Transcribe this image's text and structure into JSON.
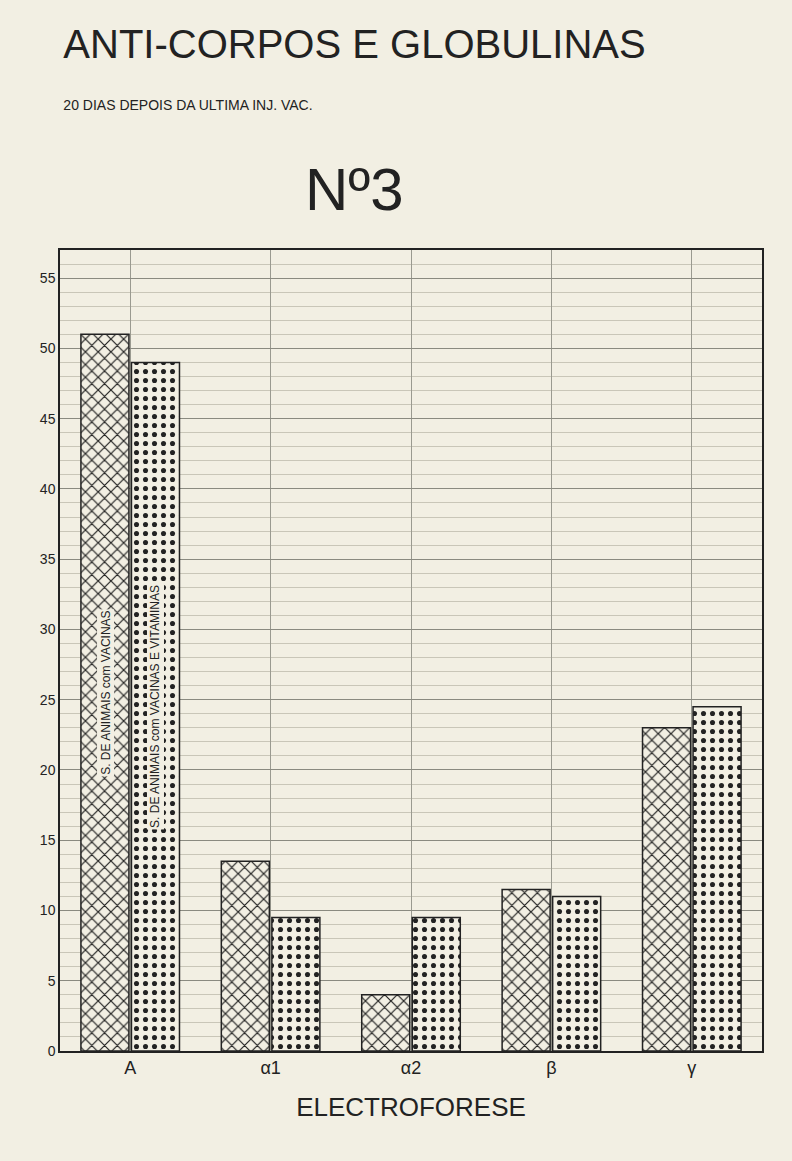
{
  "chart_data": {
    "type": "bar",
    "title": "ANTI-CORPOS E GLOBULINAS",
    "subtitle": "20 DIAS DEPOIS DA ULTIMA INJ. VAC.",
    "annotations": [
      "Nº3"
    ],
    "x_label": "ELECTROFORESE",
    "categories": [
      "A",
      "α1",
      "α2",
      "β",
      "γ"
    ],
    "series": [
      {
        "name": "S. DE ANIMAIS com VACINAS",
        "color": "#222222",
        "values": [
          51,
          13.5,
          4,
          11.5,
          23
        ]
      },
      {
        "name": "S. DE ANIMAIS com VACINAS E VITAMINAS",
        "color": "#222222",
        "values": [
          49,
          9.5,
          9.5,
          11,
          24.5
        ]
      }
    ],
    "ylim": [
      0,
      57
    ],
    "yticks": [
      0,
      5,
      10,
      15,
      20,
      25,
      30,
      35,
      40,
      45,
      50,
      55
    ],
    "grid": true
  }
}
